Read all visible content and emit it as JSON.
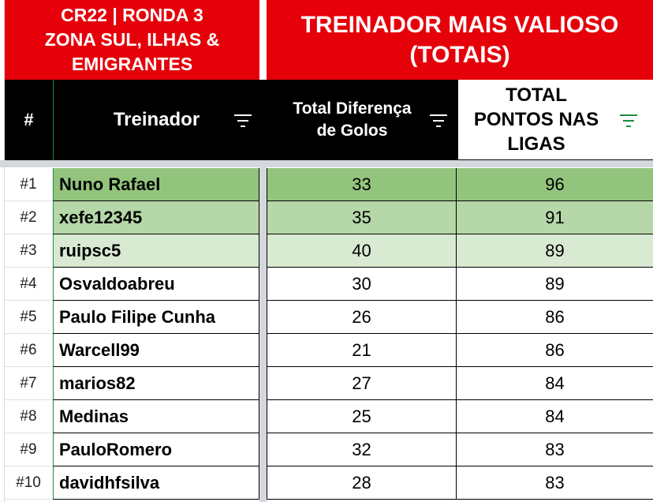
{
  "header": {
    "left_title_lines": [
      "CR22 | RONDA 3",
      "ZONA SUL, ILHAS &",
      "EMIGRANTES"
    ],
    "right_title_lines": [
      "TREINADOR MAIS VALIOSO",
      "(TOTAIS)"
    ]
  },
  "columns": {
    "rank": "#",
    "coach": "Treinador",
    "goal_diff_lines": [
      "Total Diferença",
      "de Golos"
    ],
    "league_points_lines": [
      "TOTAL",
      "PONTOS NAS",
      "LIGAS"
    ]
  },
  "icons": {
    "coach_filter": "filter-icon",
    "goal_diff_filter": "filter-icon",
    "points_filter": "filter-icon-active"
  },
  "colors": {
    "header_red": "#e5000a",
    "header_black": "#000000",
    "rank1_green": "#93c47d",
    "rank2_green": "#b6d7a8",
    "rank3_green": "#d9ead3",
    "filter_active_green": "#1e8e3e"
  },
  "rows": [
    {
      "rank": "#1",
      "name": "Nuno Rafael",
      "diff": "33",
      "points": "96"
    },
    {
      "rank": "#2",
      "name": "xefe12345",
      "diff": "35",
      "points": "91"
    },
    {
      "rank": "#3",
      "name": "ruipsc5",
      "diff": "40",
      "points": "89"
    },
    {
      "rank": "#4",
      "name": "Osvaldoabreu",
      "diff": "30",
      "points": "89"
    },
    {
      "rank": "#5",
      "name": "Paulo Filipe Cunha",
      "diff": "26",
      "points": "86"
    },
    {
      "rank": "#6",
      "name": "Warcell99",
      "diff": "21",
      "points": "86"
    },
    {
      "rank": "#7",
      "name": "marios82",
      "diff": "27",
      "points": "84"
    },
    {
      "rank": "#8",
      "name": "Medinas",
      "diff": "25",
      "points": "84"
    },
    {
      "rank": "#9",
      "name": "PauloRomero",
      "diff": "32",
      "points": "83"
    },
    {
      "rank": "#10",
      "name": "davidhfsilva",
      "diff": "28",
      "points": "83"
    }
  ]
}
